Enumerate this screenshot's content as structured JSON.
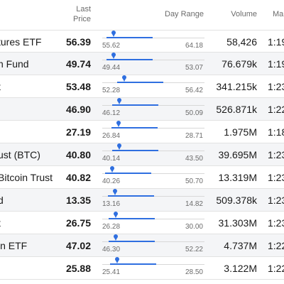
{
  "header": {
    "last_price_line1": "Last",
    "last_price_line2": "Price",
    "day_range": "Day Range",
    "volume": "Volume",
    "market_time": "Ma"
  },
  "colors": {
    "accent": "#2f6fe0",
    "alt_row": "#f4f5f7"
  },
  "rows": [
    {
      "name": "tures ETF",
      "price": "56.39",
      "low": "55.62",
      "high": "64.18",
      "low_num": 55.62,
      "high_num": 64.18,
      "fill_end": 64.18,
      "volume": "58,426",
      "time": "1:19"
    },
    {
      "name": "n Fund",
      "price": "49.74",
      "low": "49.44",
      "high": "53.07",
      "low_num": 49.44,
      "high_num": 53.07,
      "fill_end": 53.07,
      "volume": "76.679k",
      "time": "1:19"
    },
    {
      "name": "t",
      "price": "53.48",
      "low": "52.28",
      "high": "56.42",
      "low_num": 52.28,
      "high_num": 56.42,
      "fill_end": 56.42,
      "volume": "341.215k",
      "time": "1:23"
    },
    {
      "name": "",
      "price": "46.90",
      "low": "46.12",
      "high": "50.09",
      "low_num": 46.12,
      "high_num": 50.09,
      "fill_end": 50.09,
      "volume": "526.871k",
      "time": "1:22"
    },
    {
      "name": "",
      "price": "27.19",
      "low": "26.84",
      "high": "28.71",
      "low_num": 26.84,
      "high_num": 28.71,
      "fill_end": 28.71,
      "volume": "1.975M",
      "time": "1:18"
    },
    {
      "name": "ust (BTC)",
      "price": "40.80",
      "low": "40.14",
      "high": "43.50",
      "low_num": 40.14,
      "high_num": 43.5,
      "fill_end": 43.5,
      "volume": "39.695M",
      "time": "1:23"
    },
    {
      "name": "Bitcoin Trust",
      "price": "40.82",
      "low": "40.26",
      "high": "50.70",
      "low_num": 40.26,
      "high_num": 50.7,
      "fill_end": 50.7,
      "volume": "13.319M",
      "time": "1:23"
    },
    {
      "name": "d",
      "price": "13.35",
      "low": "13.16",
      "high": "14.82",
      "low_num": 13.16,
      "high_num": 14.82,
      "fill_end": 14.82,
      "volume": "509.378k",
      "time": "1:23"
    },
    {
      "name": "t",
      "price": "26.75",
      "low": "26.28",
      "high": "30.00",
      "low_num": 26.28,
      "high_num": 30.0,
      "fill_end": 30.0,
      "volume": "31.303M",
      "time": "1:23"
    },
    {
      "name": "in ETF",
      "price": "47.02",
      "low": "46.30",
      "high": "52.22",
      "low_num": 46.3,
      "high_num": 52.22,
      "fill_end": 52.22,
      "volume": "4.737M",
      "time": "1:22"
    },
    {
      "name": "",
      "price": "25.88",
      "low": "25.41",
      "high": "28.50",
      "low_num": 25.41,
      "high_num": 28.5,
      "fill_end": 28.5,
      "volume": "3.122M",
      "time": "1:22"
    }
  ]
}
